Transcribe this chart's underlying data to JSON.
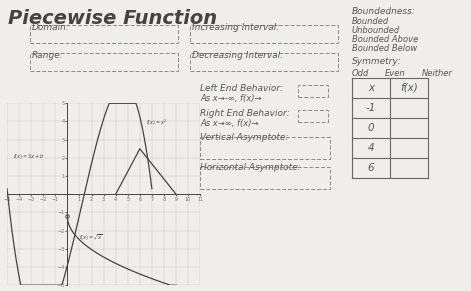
{
  "title": "Piecewise Function",
  "bg_color": "#f0eeea",
  "text_color": "#555555",
  "labels": {
    "domain": "Domain:",
    "range": "Range:",
    "increasing": "Increasing Interval:",
    "decreasing": "Decreasing Interval:",
    "boundedness": "Boundedness:",
    "bounded": "Bounded",
    "unbounded": "Unbounded",
    "bounded_above": "Bounded Above",
    "bounded_below": "Bounded Below",
    "symmetry": "Symmetry:",
    "odd": "Odd",
    "even": "Even",
    "neither": "Neither",
    "left_end": "Left End Behavior:",
    "left_eq": "As x→-∞, f(x)→",
    "right_end": "Right End Behavior:",
    "right_eq": "As x→∞, f(x)→",
    "vertical": "Vertical Asymptote:",
    "horizontal": "Horizontal Asymptote:"
  },
  "table_headers": [
    "x",
    "f(x)"
  ],
  "table_rows": [
    "-1",
    "0",
    "4",
    "6"
  ]
}
